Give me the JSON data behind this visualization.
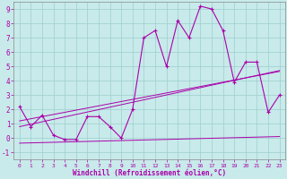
{
  "xlabel": "Windchill (Refroidissement éolien,°C)",
  "bg_color": "#c8eaea",
  "grid_color": "#9ecece",
  "line_color": "#aa00aa",
  "spine_color": "#888888",
  "xlim": [
    -0.5,
    23.5
  ],
  "ylim": [
    -1.5,
    9.5
  ],
  "xticks": [
    0,
    1,
    2,
    3,
    4,
    5,
    6,
    7,
    8,
    9,
    10,
    11,
    12,
    13,
    14,
    15,
    16,
    17,
    18,
    19,
    20,
    21,
    22,
    23
  ],
  "yticks": [
    -1,
    0,
    1,
    2,
    3,
    4,
    5,
    6,
    7,
    8,
    9
  ],
  "x": [
    0,
    1,
    2,
    3,
    4,
    5,
    6,
    7,
    8,
    9,
    10,
    11,
    12,
    13,
    14,
    15,
    16,
    17,
    18,
    19,
    20,
    21,
    22,
    23
  ],
  "y_main": [
    2.2,
    0.8,
    1.6,
    0.2,
    -0.1,
    -0.1,
    1.5,
    1.5,
    0.8,
    0.0,
    2.0,
    7.0,
    7.5,
    5.0,
    8.2,
    7.0,
    9.2,
    9.0,
    7.5,
    3.9,
    5.3,
    5.3,
    1.8,
    3.0
  ],
  "y_line1": [
    1.2,
    1.35,
    1.5,
    1.65,
    1.8,
    1.95,
    2.1,
    2.25,
    2.4,
    2.55,
    2.7,
    2.85,
    3.0,
    3.15,
    3.3,
    3.45,
    3.6,
    3.75,
    3.9,
    4.05,
    4.2,
    4.35,
    4.5,
    4.65
  ],
  "y_line2": [
    0.8,
    0.97,
    1.14,
    1.31,
    1.48,
    1.65,
    1.82,
    1.99,
    2.16,
    2.33,
    2.5,
    2.67,
    2.84,
    3.01,
    3.18,
    3.35,
    3.52,
    3.69,
    3.86,
    4.03,
    4.2,
    4.37,
    4.54,
    4.71
  ],
  "y_line3": [
    -0.35,
    -0.33,
    -0.31,
    -0.29,
    -0.27,
    -0.25,
    -0.23,
    -0.21,
    -0.19,
    -0.17,
    -0.15,
    -0.13,
    -0.11,
    -0.09,
    -0.07,
    -0.05,
    -0.03,
    -0.01,
    0.01,
    0.03,
    0.05,
    0.07,
    0.09,
    0.11
  ],
  "xlabel_fontsize": 5.5,
  "tick_fontsize_x": 4.5,
  "tick_fontsize_y": 5.5
}
